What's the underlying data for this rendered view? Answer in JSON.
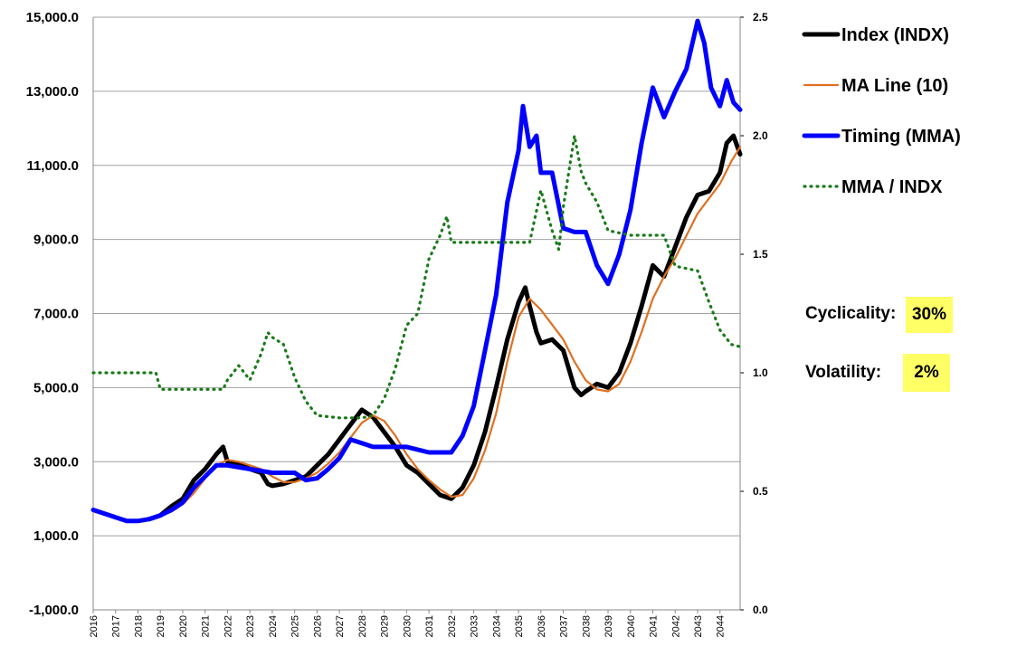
{
  "chart_data": {
    "type": "line",
    "title": "",
    "xlabel": "",
    "ylabel": "",
    "x_ticks": [
      "2016",
      "2017",
      "2018",
      "2019",
      "2020",
      "2021",
      "2022",
      "2023",
      "2024",
      "2025",
      "2026",
      "2027",
      "2028",
      "2029",
      "2030",
      "2031",
      "2032",
      "2033",
      "2034",
      "2035",
      "2036",
      "2037",
      "2038",
      "2039",
      "2040",
      "2041",
      "2042",
      "2043",
      "2044"
    ],
    "y_left": {
      "range": [
        -1000,
        15000
      ],
      "ticks": [
        "-1,000.0",
        "1,000.0",
        "3,000.0",
        "5,000.0",
        "7,000.0",
        "9,000.0",
        "11,000.0",
        "13,000.0",
        "15,000.0"
      ]
    },
    "y_right": {
      "range": [
        0,
        2.5
      ],
      "ticks": [
        "0.0",
        "0.5",
        "1.0",
        "1.5",
        "2.0",
        "2.5"
      ]
    },
    "grid": "horizontal",
    "legend_position": "top-right",
    "series": [
      {
        "name": "Index (INDX)",
        "axis": "left",
        "color": "#000000",
        "style": "solid-thick",
        "points": [
          [
            2018.5,
            1450
          ],
          [
            2019,
            1550
          ],
          [
            2019.5,
            1800
          ],
          [
            2020,
            2000
          ],
          [
            2020.5,
            2500
          ],
          [
            2021,
            2800
          ],
          [
            2021.5,
            3200
          ],
          [
            2021.8,
            3400
          ],
          [
            2022,
            3000
          ],
          [
            2022.5,
            2950
          ],
          [
            2023,
            2800
          ],
          [
            2023.5,
            2700
          ],
          [
            2023.8,
            2400
          ],
          [
            2024,
            2350
          ],
          [
            2024.5,
            2400
          ],
          [
            2025,
            2500
          ],
          [
            2025.5,
            2600
          ],
          [
            2026,
            2900
          ],
          [
            2026.5,
            3200
          ],
          [
            2027,
            3600
          ],
          [
            2027.5,
            4000
          ],
          [
            2028,
            4400
          ],
          [
            2028.5,
            4200
          ],
          [
            2029,
            3800
          ],
          [
            2029.5,
            3400
          ],
          [
            2030,
            2900
          ],
          [
            2030.5,
            2700
          ],
          [
            2031,
            2400
          ],
          [
            2031.5,
            2100
          ],
          [
            2032,
            2000
          ],
          [
            2032.5,
            2300
          ],
          [
            2033,
            2900
          ],
          [
            2033.5,
            3800
          ],
          [
            2034,
            5000
          ],
          [
            2034.5,
            6300
          ],
          [
            2035,
            7300
          ],
          [
            2035.3,
            7700
          ],
          [
            2035.5,
            7200
          ],
          [
            2035.8,
            6500
          ],
          [
            2036,
            6200
          ],
          [
            2036.5,
            6300
          ],
          [
            2037,
            6000
          ],
          [
            2037.5,
            5000
          ],
          [
            2037.8,
            4800
          ],
          [
            2038,
            4900
          ],
          [
            2038.5,
            5100
          ],
          [
            2039,
            5000
          ],
          [
            2039.5,
            5400
          ],
          [
            2040,
            6200
          ],
          [
            2040.5,
            7200
          ],
          [
            2041,
            8300
          ],
          [
            2041.5,
            8000
          ],
          [
            2042,
            8800
          ],
          [
            2042.5,
            9600
          ],
          [
            2043,
            10200
          ],
          [
            2043.5,
            10300
          ],
          [
            2044,
            10800
          ],
          [
            2044.3,
            11600
          ],
          [
            2044.6,
            11800
          ],
          [
            2044.9,
            11300
          ]
        ]
      },
      {
        "name": "MA Line (10)",
        "axis": "left",
        "color": "#e07020",
        "style": "solid-thin",
        "points": [
          [
            2018.5,
            1450
          ],
          [
            2019,
            1550
          ],
          [
            2019.5,
            1650
          ],
          [
            2020,
            1850
          ],
          [
            2020.5,
            2150
          ],
          [
            2021,
            2550
          ],
          [
            2021.5,
            2900
          ],
          [
            2022,
            3050
          ],
          [
            2022.5,
            3000
          ],
          [
            2023,
            2900
          ],
          [
            2023.5,
            2800
          ],
          [
            2024,
            2600
          ],
          [
            2024.5,
            2450
          ],
          [
            2025,
            2450
          ],
          [
            2025.5,
            2550
          ],
          [
            2026,
            2700
          ],
          [
            2026.5,
            2950
          ],
          [
            2027,
            3250
          ],
          [
            2027.5,
            3650
          ],
          [
            2028,
            4050
          ],
          [
            2028.5,
            4250
          ],
          [
            2029,
            4100
          ],
          [
            2029.5,
            3700
          ],
          [
            2030,
            3200
          ],
          [
            2030.5,
            2800
          ],
          [
            2031,
            2500
          ],
          [
            2031.5,
            2250
          ],
          [
            2032,
            2050
          ],
          [
            2032.5,
            2100
          ],
          [
            2033,
            2550
          ],
          [
            2033.5,
            3300
          ],
          [
            2034,
            4300
          ],
          [
            2034.5,
            5700
          ],
          [
            2035,
            6900
          ],
          [
            2035.5,
            7400
          ],
          [
            2036,
            7100
          ],
          [
            2036.5,
            6700
          ],
          [
            2037,
            6300
          ],
          [
            2037.5,
            5700
          ],
          [
            2038,
            5200
          ],
          [
            2038.5,
            4950
          ],
          [
            2039,
            4900
          ],
          [
            2039.5,
            5100
          ],
          [
            2040,
            5700
          ],
          [
            2040.5,
            6500
          ],
          [
            2041,
            7400
          ],
          [
            2041.5,
            8000
          ],
          [
            2042,
            8500
          ],
          [
            2042.5,
            9100
          ],
          [
            2043,
            9700
          ],
          [
            2043.5,
            10100
          ],
          [
            2044,
            10500
          ],
          [
            2044.5,
            11100
          ],
          [
            2044.9,
            11500
          ]
        ]
      },
      {
        "name": "Timing (MMA)",
        "axis": "left",
        "color": "#0000ff",
        "style": "solid-thick",
        "points": [
          [
            2016,
            1700
          ],
          [
            2016.5,
            1600
          ],
          [
            2017,
            1500
          ],
          [
            2017.5,
            1400
          ],
          [
            2018,
            1400
          ],
          [
            2018.5,
            1450
          ],
          [
            2019,
            1550
          ],
          [
            2019.5,
            1700
          ],
          [
            2020,
            1900
          ],
          [
            2020.5,
            2300
          ],
          [
            2021,
            2600
          ],
          [
            2021.5,
            2900
          ],
          [
            2022,
            2900
          ],
          [
            2022.5,
            2850
          ],
          [
            2023,
            2800
          ],
          [
            2023.5,
            2750
          ],
          [
            2024,
            2700
          ],
          [
            2025,
            2700
          ],
          [
            2025.5,
            2500
          ],
          [
            2026,
            2550
          ],
          [
            2026.5,
            2800
          ],
          [
            2027,
            3100
          ],
          [
            2027.5,
            3600
          ],
          [
            2028,
            3500
          ],
          [
            2028.5,
            3400
          ],
          [
            2029,
            3400
          ],
          [
            2030,
            3400
          ],
          [
            2031,
            3250
          ],
          [
            2032,
            3250
          ],
          [
            2032.5,
            3700
          ],
          [
            2033,
            4500
          ],
          [
            2033.5,
            6000
          ],
          [
            2034,
            7500
          ],
          [
            2034.5,
            10000
          ],
          [
            2035,
            11400
          ],
          [
            2035.2,
            12600
          ],
          [
            2035.5,
            11500
          ],
          [
            2035.8,
            11800
          ],
          [
            2036,
            10800
          ],
          [
            2036.5,
            10800
          ],
          [
            2037,
            9300
          ],
          [
            2037.5,
            9200
          ],
          [
            2038,
            9200
          ],
          [
            2038.5,
            8300
          ],
          [
            2039,
            7800
          ],
          [
            2039.5,
            8600
          ],
          [
            2040,
            9800
          ],
          [
            2040.5,
            11600
          ],
          [
            2041,
            13100
          ],
          [
            2041.5,
            12300
          ],
          [
            2042,
            13000
          ],
          [
            2042.5,
            13600
          ],
          [
            2043,
            14900
          ],
          [
            2043.3,
            14300
          ],
          [
            2043.6,
            13100
          ],
          [
            2044,
            12600
          ],
          [
            2044.3,
            13300
          ],
          [
            2044.6,
            12700
          ],
          [
            2044.9,
            12500
          ]
        ]
      },
      {
        "name": "MMA / INDX",
        "axis": "right",
        "color": "#1a7a1a",
        "style": "dotted",
        "points": [
          [
            2016,
            1.0
          ],
          [
            2017,
            1.0
          ],
          [
            2018,
            1.0
          ],
          [
            2018.8,
            1.0
          ],
          [
            2019,
            0.93
          ],
          [
            2020,
            0.93
          ],
          [
            2021,
            0.93
          ],
          [
            2021.8,
            0.93
          ],
          [
            2022,
            0.97
          ],
          [
            2022.5,
            1.03
          ],
          [
            2023,
            0.97
          ],
          [
            2023.5,
            1.08
          ],
          [
            2023.8,
            1.17
          ],
          [
            2024,
            1.15
          ],
          [
            2024.5,
            1.12
          ],
          [
            2025,
            0.98
          ],
          [
            2025.5,
            0.88
          ],
          [
            2026,
            0.82
          ],
          [
            2027,
            0.81
          ],
          [
            2028,
            0.81
          ],
          [
            2028.5,
            0.82
          ],
          [
            2029,
            0.89
          ],
          [
            2029.5,
            1.02
          ],
          [
            2030,
            1.2
          ],
          [
            2030.5,
            1.25
          ],
          [
            2031,
            1.48
          ],
          [
            2031.5,
            1.58
          ],
          [
            2031.8,
            1.66
          ],
          [
            2032,
            1.55
          ],
          [
            2033,
            1.55
          ],
          [
            2034,
            1.55
          ],
          [
            2035,
            1.55
          ],
          [
            2035.5,
            1.55
          ],
          [
            2036,
            1.77
          ],
          [
            2036.5,
            1.6
          ],
          [
            2036.8,
            1.52
          ],
          [
            2037,
            1.7
          ],
          [
            2037.5,
            2.0
          ],
          [
            2037.8,
            1.85
          ],
          [
            2038,
            1.8
          ],
          [
            2038.5,
            1.72
          ],
          [
            2039,
            1.6
          ],
          [
            2040,
            1.58
          ],
          [
            2041,
            1.58
          ],
          [
            2041.5,
            1.58
          ],
          [
            2042,
            1.45
          ],
          [
            2043,
            1.43
          ],
          [
            2043.5,
            1.3
          ],
          [
            2044,
            1.18
          ],
          [
            2044.5,
            1.12
          ],
          [
            2044.9,
            1.11
          ]
        ]
      }
    ]
  },
  "stats": {
    "cyclicality_label": "Cyclicality:",
    "cyclicality_value": "30%",
    "volatility_label": "Volatility:",
    "volatility_value": "2%"
  },
  "colors": {
    "gridline": "#a0a0a0",
    "highlight": "#ffff66"
  }
}
